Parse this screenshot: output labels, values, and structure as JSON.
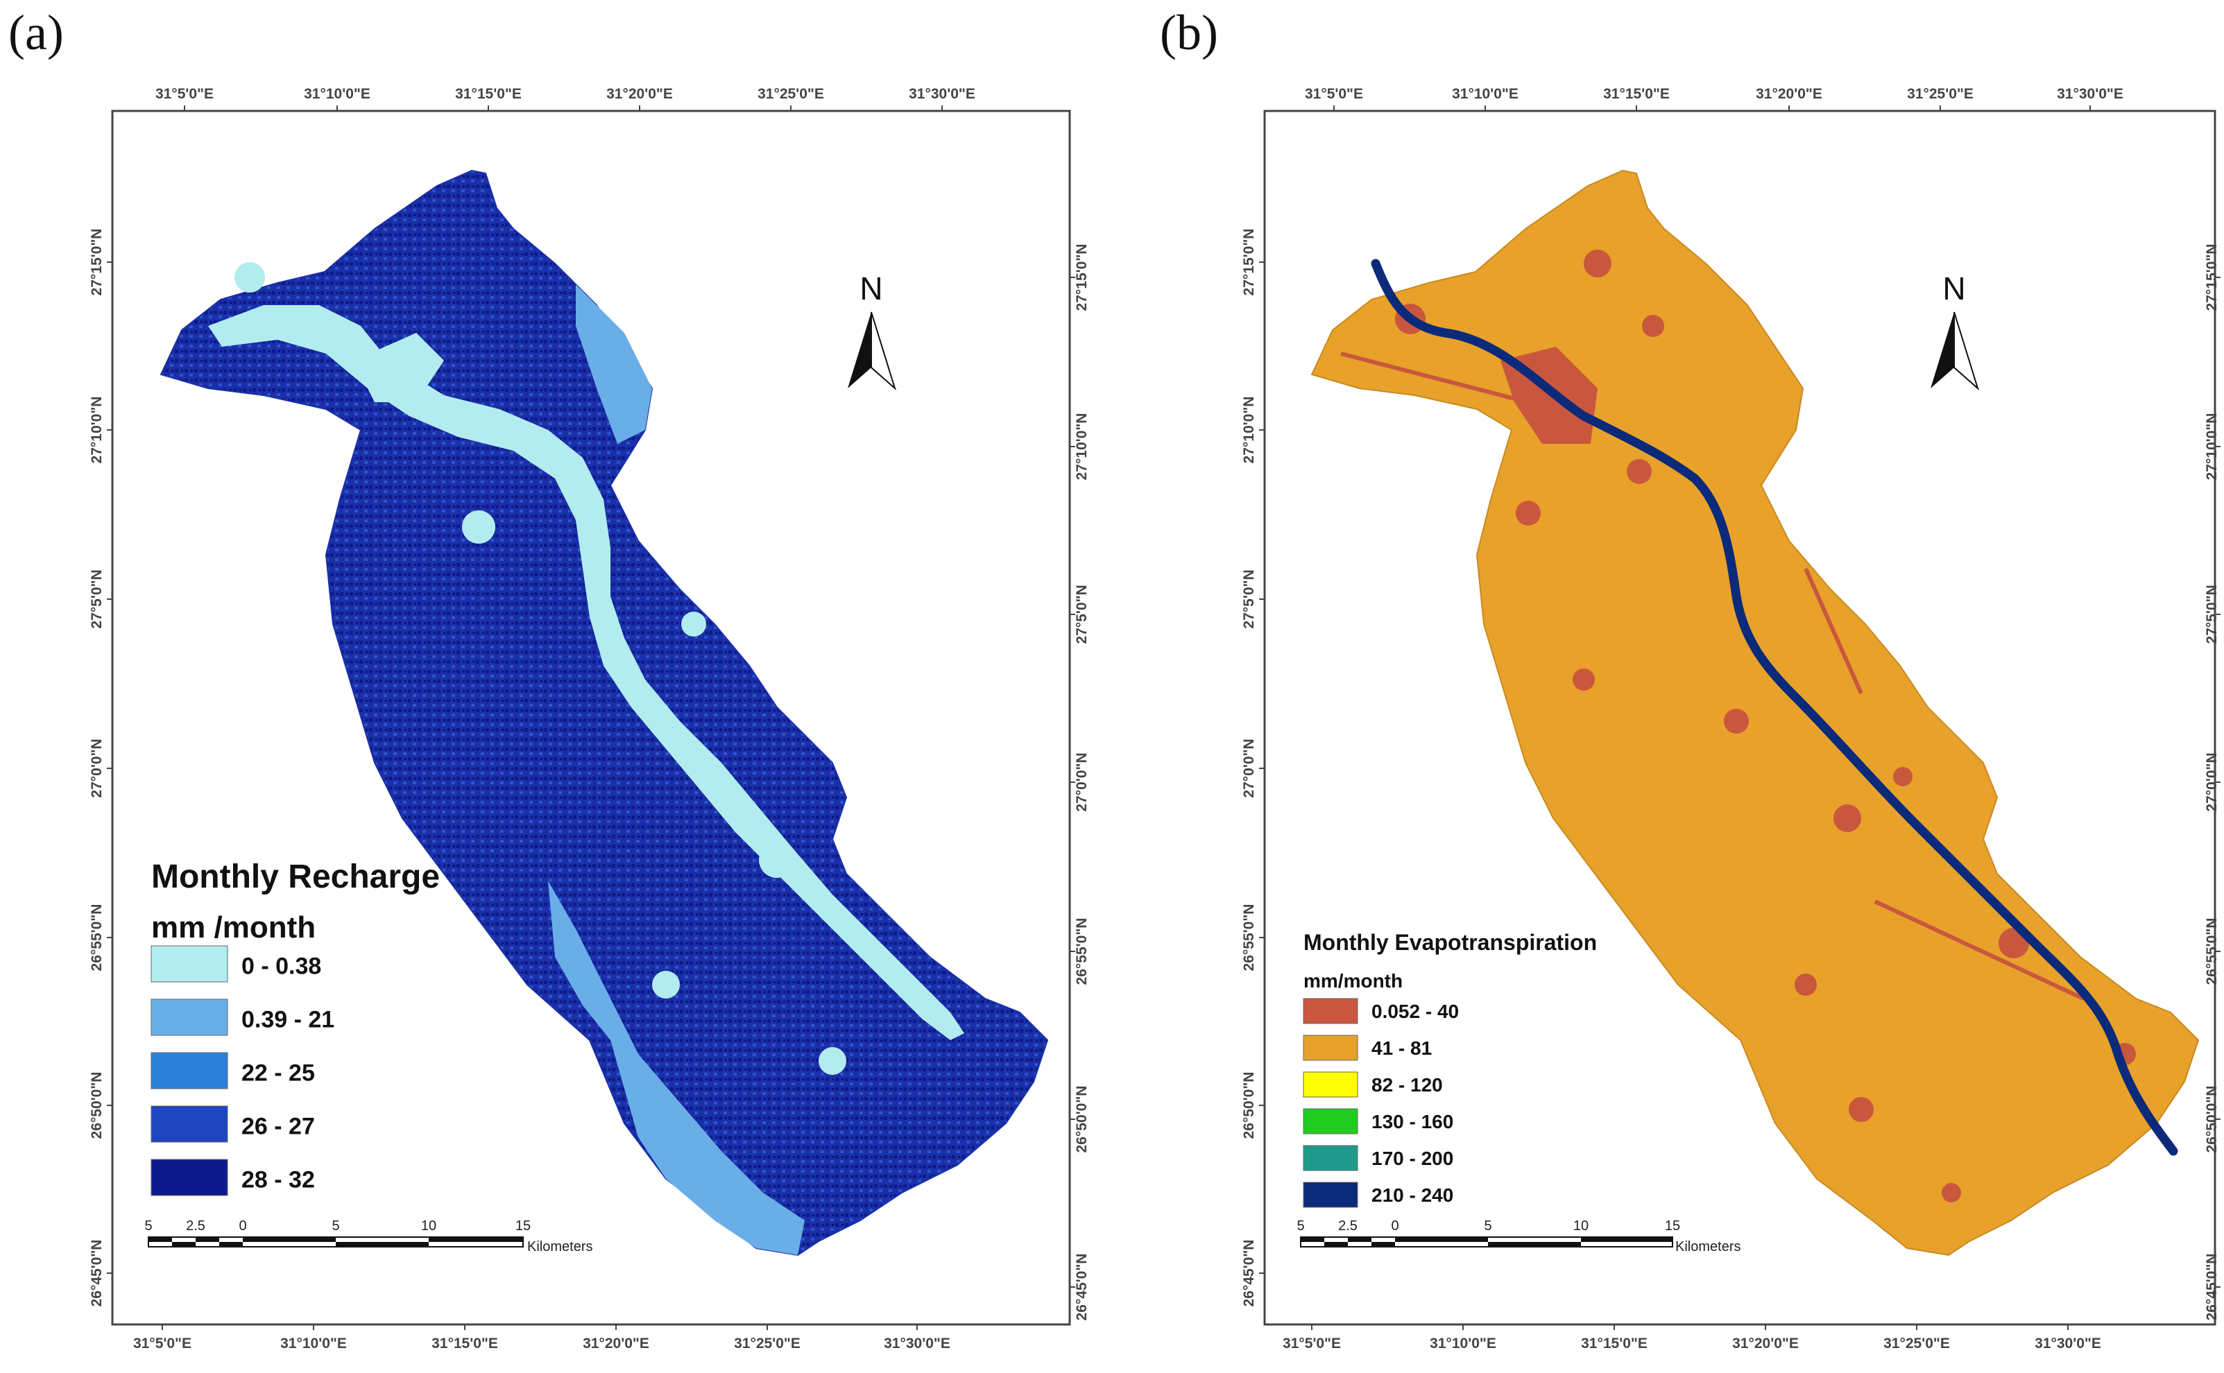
{
  "panels": [
    {
      "tag": "(a)",
      "top_ticks": [
        "31°5'0\"E",
        "31°10'0\"E",
        "31°15'0\"E",
        "31°20'0\"E",
        "31°25'0\"E",
        "31°30'0\"E"
      ],
      "bottom_ticks": [
        "31°5'0\"E",
        "31°10'0\"E",
        "31°15'0\"E",
        "31°20'0\"E",
        "31°25'0\"E",
        "31°30'0\"E"
      ],
      "left_ticks": [
        "27°15'0\"N",
        "27°10'0\"N",
        "27°5'0\"N",
        "27°0'0\"N",
        "26°55'0\"N",
        "26°50'0\"N",
        "26°45'0\"N"
      ],
      "right_ticks": [
        "27°15'0\"N",
        "27°10'0\"N",
        "27°5'0\"N",
        "27°0'0\"N",
        "26°55'0\"N",
        "26°50'0\"N",
        "26°45'0\"N"
      ],
      "north_label": "N",
      "legend": {
        "title": "Monthly Recharge",
        "unit": "mm /month",
        "classes": [
          {
            "label": "0 - 0.38",
            "color": "#b3ecef"
          },
          {
            "label": "0.39 - 21",
            "color": "#6aaee8"
          },
          {
            "label": "22 - 25",
            "color": "#2c80d8"
          },
          {
            "label": "26 - 27",
            "color": "#1f45c0"
          },
          {
            "label": "28 - 32",
            "color": "#0c1a8c"
          }
        ]
      },
      "scale": {
        "labels": [
          "5",
          "2.5",
          "0",
          "5",
          "10",
          "15"
        ],
        "unit": "Kilometers"
      }
    },
    {
      "tag": "(b)",
      "top_ticks": [
        "31°5'0\"E",
        "31°10'0\"E",
        "31°15'0\"E",
        "31°20'0\"E",
        "31°25'0\"E",
        "31°30'0\"E"
      ],
      "bottom_ticks": [
        "31°5'0\"E",
        "31°10'0\"E",
        "31°15'0\"E",
        "31°20'0\"E",
        "31°25'0\"E",
        "31°30'0\"E"
      ],
      "left_ticks": [
        "27°15'0\"N",
        "27°10'0\"N",
        "27°5'0\"N",
        "27°0'0\"N",
        "26°55'0\"N",
        "26°50'0\"N",
        "26°45'0\"N"
      ],
      "right_ticks": [
        "27°15'0\"N",
        "27°10'0\"N",
        "27°5'0\"N",
        "27°0'0\"N",
        "26°55'0\"N",
        "26°50'0\"N",
        "26°45'0\"N"
      ],
      "north_label": "N",
      "legend": {
        "title": "Monthly Evapotranspiration",
        "unit": "mm/month",
        "classes": [
          {
            "label": "0.052 - 40",
            "color": "#c9573d"
          },
          {
            "label": "41 - 81",
            "color": "#e8a12a"
          },
          {
            "label": "82 - 120",
            "color": "#ffff00"
          },
          {
            "label": "130 - 160",
            "color": "#1fcc1f"
          },
          {
            "label": "170 - 200",
            "color": "#1f9a8a"
          },
          {
            "label": "210 - 240",
            "color": "#0c2a7a"
          }
        ]
      },
      "scale": {
        "labels": [
          "5",
          "2.5",
          "0",
          "5",
          "10",
          "15"
        ],
        "unit": "Kilometers"
      }
    }
  ]
}
